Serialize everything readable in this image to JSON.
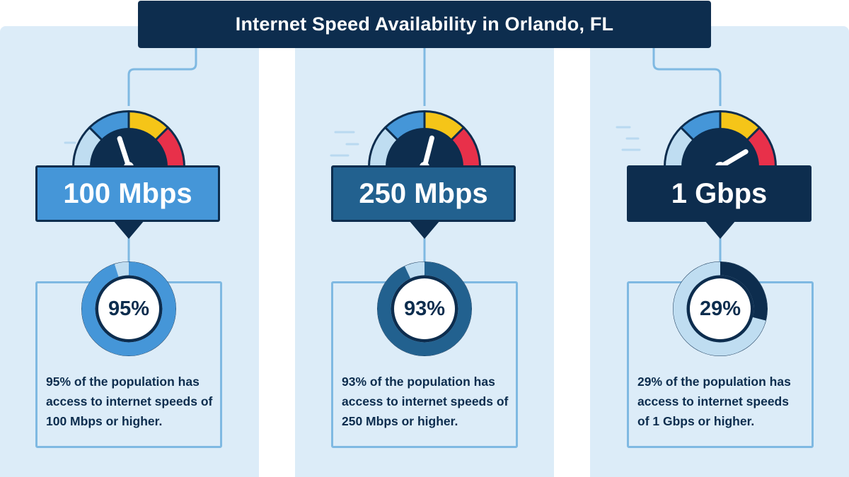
{
  "header": {
    "title": "Internet Speed Availability in Orlando, FL"
  },
  "colors": {
    "navy": "#0d2d4e",
    "blue_light": "#4596d8",
    "blue_mid": "#22618f",
    "ring_track": "#bfddf1",
    "gauge_yellow": "#f5c518",
    "gauge_red": "#e8304a",
    "panel_bg": "#dcecf8"
  },
  "tiers": [
    {
      "speed_label": "100 Mbps",
      "percent_label": "95%",
      "percent_value": 95,
      "gauge_level": 0.4,
      "color": "#4596d8",
      "description": [
        "95% of the population has",
        "access to internet speeds of",
        "100 Mbps or higher."
      ]
    },
    {
      "speed_label": "250 Mbps",
      "percent_label": "93%",
      "percent_value": 93,
      "gauge_level": 0.58,
      "color": "#22618f",
      "description": [
        "93% of the population has",
        "access to internet speeds of",
        "250 Mbps or higher."
      ]
    },
    {
      "speed_label": "1 Gbps",
      "percent_label": "29%",
      "percent_value": 29,
      "gauge_level": 0.83,
      "color": "#0d2d4e",
      "description": [
        "29% of the population has",
        "access to internet speeds",
        "of 1 Gbps or higher."
      ]
    }
  ]
}
